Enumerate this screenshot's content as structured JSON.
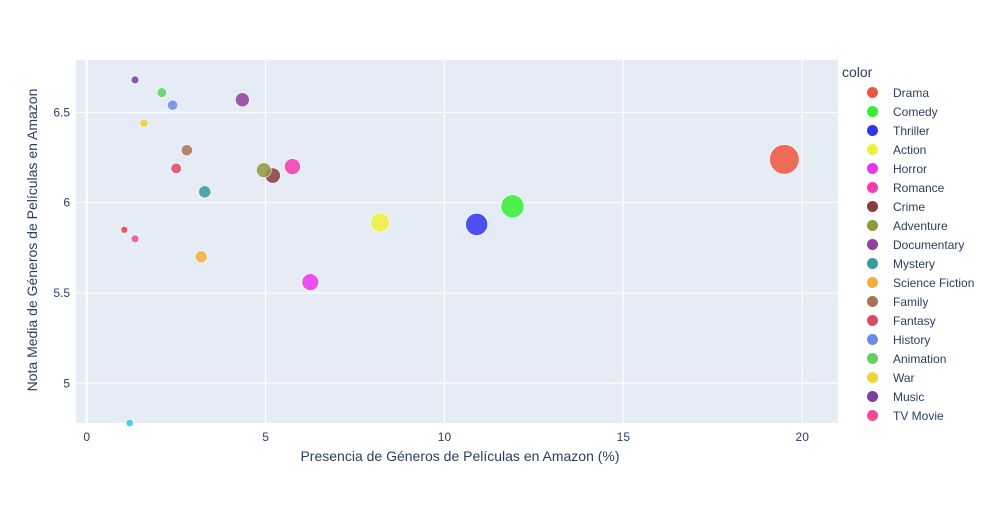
{
  "chart_data": {
    "type": "scatter",
    "title": "",
    "xlabel": "Presencia de Géneros de Películas en Amazon (%)",
    "ylabel": "Nota Media de Géneros de Películas en Amazon",
    "xlim": [
      -0.3,
      21
    ],
    "ylim": [
      4.78,
      6.79
    ],
    "x_ticks": [
      0,
      5,
      10,
      15,
      20
    ],
    "y_ticks": [
      5,
      5.5,
      6,
      6.5
    ],
    "x_tick_labels": [
      "0",
      "5",
      "10",
      "15",
      "20"
    ],
    "y_tick_labels": [
      "5",
      "5.5",
      "6",
      "6.5"
    ],
    "grid": true,
    "legend_title": "color",
    "legend_position": "right",
    "plot_background": "#e5ecf6",
    "series": [
      {
        "name": "Drama",
        "x": 19.5,
        "y": 6.24,
        "color": "#ef553b"
      },
      {
        "name": "Comedy",
        "x": 11.9,
        "y": 5.98,
        "color": "#33ee33"
      },
      {
        "name": "Thriller",
        "x": 10.9,
        "y": 5.88,
        "color": "#3333ee"
      },
      {
        "name": "Action",
        "x": 8.2,
        "y": 5.89,
        "color": "#f0f03c"
      },
      {
        "name": "Horror",
        "x": 6.25,
        "y": 5.56,
        "color": "#ee33ee"
      },
      {
        "name": "Romance",
        "x": 5.75,
        "y": 6.2,
        "color": "#f43ab2"
      },
      {
        "name": "Crime",
        "x": 5.2,
        "y": 6.15,
        "color": "#8b3a3a"
      },
      {
        "name": "Adventure",
        "x": 4.95,
        "y": 6.18,
        "color": "#8f9a3a"
      },
      {
        "name": "Documentary",
        "x": 4.35,
        "y": 6.57,
        "color": "#933d9e"
      },
      {
        "name": "Mystery",
        "x": 3.3,
        "y": 6.06,
        "color": "#3a9a9a"
      },
      {
        "name": "Science Fiction",
        "x": 3.2,
        "y": 5.7,
        "color": "#f5ad3b"
      },
      {
        "name": "Family",
        "x": 2.8,
        "y": 6.29,
        "color": "#a87451"
      },
      {
        "name": "Fantasy",
        "x": 2.5,
        "y": 6.19,
        "color": "#dc4a62"
      },
      {
        "name": "History",
        "x": 2.4,
        "y": 6.54,
        "color": "#6a8ce8"
      },
      {
        "name": "Animation",
        "x": 2.1,
        "y": 6.61,
        "color": "#62d062"
      },
      {
        "name": "War",
        "x": 1.6,
        "y": 6.44,
        "color": "#f2d33b"
      },
      {
        "name": "Music",
        "x": 1.35,
        "y": 6.68,
        "color": "#7a3fa0"
      },
      {
        "name": "TV Movie",
        "x": 1.35,
        "y": 5.8,
        "color": "#f04c9a"
      },
      {
        "name": "",
        "x": 1.05,
        "y": 5.85,
        "color": "#ef3b4a"
      },
      {
        "name": "",
        "x": 1.2,
        "y": 4.78,
        "color": "#33c3ee"
      }
    ]
  }
}
